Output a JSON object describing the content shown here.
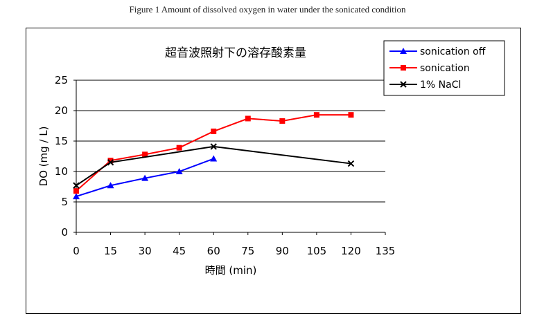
{
  "figure_caption": "Figure 1 Amount of dissolved oxygen in water under the sonicated condition",
  "chart_data": {
    "type": "line",
    "title": "超音波照射下の溶存酸素量",
    "xlabel": "時間 (min)",
    "ylabel": "DO (mg / L)",
    "xlim": [
      0,
      135
    ],
    "ylim": [
      0,
      25
    ],
    "xticks": [
      "0",
      "15",
      "30",
      "45",
      "60",
      "75",
      "90",
      "105",
      "120",
      "135"
    ],
    "yticks": [
      "0",
      "5",
      "10",
      "15",
      "20",
      "25"
    ],
    "grid": "horizontal",
    "legend_position": "top-right",
    "series": [
      {
        "name": "sonication off",
        "color": "#0000ff",
        "marker": "triangle",
        "x": [
          0,
          15,
          30,
          45,
          60
        ],
        "y": [
          5.9,
          7.7,
          8.9,
          10.0,
          12.1
        ]
      },
      {
        "name": "sonication",
        "color": "#ff0000",
        "marker": "square",
        "x": [
          0,
          15,
          30,
          45,
          60,
          75,
          90,
          105,
          120
        ],
        "y": [
          6.8,
          11.8,
          12.8,
          13.9,
          16.6,
          18.7,
          18.3,
          19.3,
          19.3
        ]
      },
      {
        "name": "1% NaCl",
        "color": "#000000",
        "marker": "x",
        "x": [
          0,
          15,
          60,
          120
        ],
        "y": [
          7.7,
          11.5,
          14.1,
          11.3
        ]
      }
    ]
  }
}
